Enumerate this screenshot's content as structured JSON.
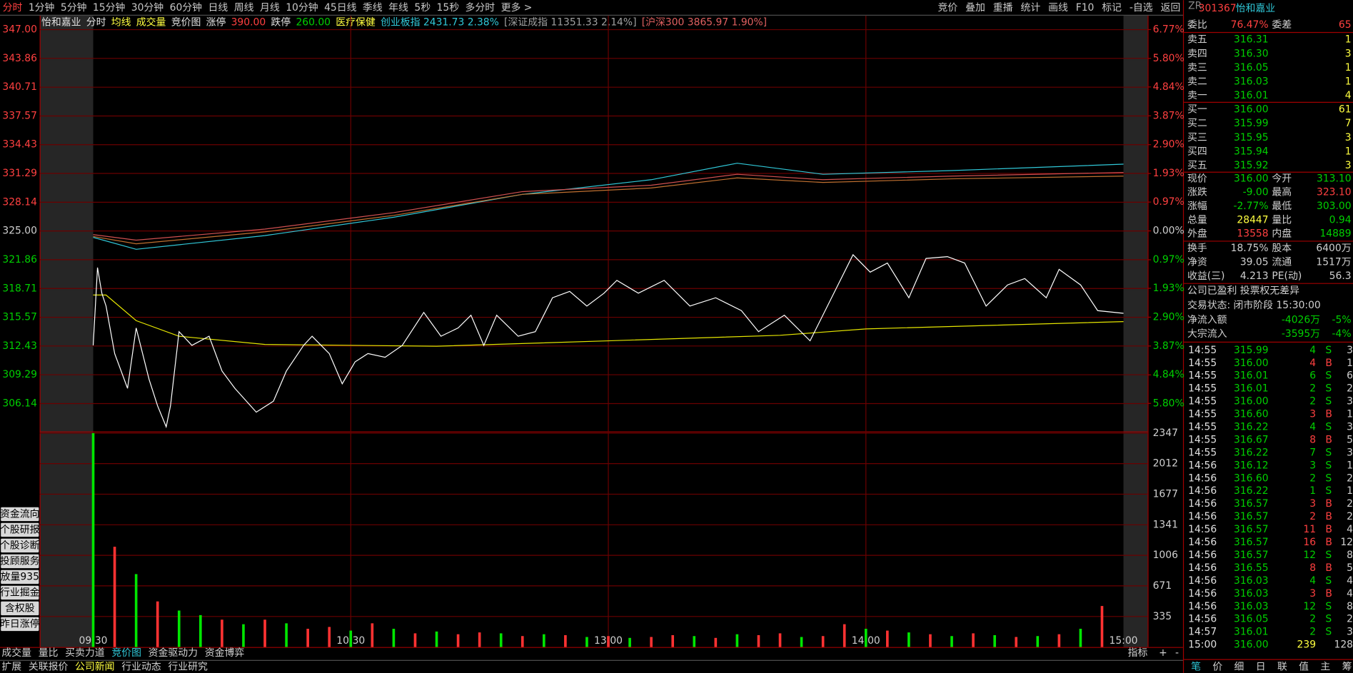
{
  "toolbar": {
    "left": [
      "分时",
      "1分钟",
      "5分钟",
      "15分钟",
      "30分钟",
      "60分钟",
      "日线",
      "周线",
      "月线",
      "10分钟",
      "45日线",
      "季线",
      "年线",
      "5秒",
      "15秒",
      "多分时",
      "更多 >"
    ],
    "right": [
      "竞价",
      "叠加",
      "重播",
      "统计",
      "画线",
      "F10",
      "标记",
      "-自选",
      "返回"
    ]
  },
  "info_bar": {
    "items": [
      "怡和嘉业",
      "分时",
      "均线",
      "成交量",
      "竞价图",
      "涨停",
      "390.00",
      "跌停",
      "260.00",
      "医疗保健",
      "创业板指 2431.73 2.38%",
      "[深证成指 11351.33 2.14%]",
      "[沪深300 3865.97 1.90%]"
    ],
    "colors": [
      "#e0e0e0",
      "#e0e0e0",
      "#ffff40",
      "#ffff40",
      "#e0e0e0",
      "#e0e0e0",
      "#ff4040",
      "#e0e0e0",
      "#00d000",
      "#ffff40",
      "#30c8d8",
      "#a0a0a0",
      "#e06060"
    ]
  },
  "chart_data": [
    {
      "type": "line",
      "xlim": [
        0,
        240
      ],
      "xticks": [
        {
          "value": 0,
          "label": "09:30"
        },
        {
          "value": 60,
          "label": "10:30"
        },
        {
          "value": 120,
          "label": "13:00"
        },
        {
          "value": 180,
          "label": "14:00"
        },
        {
          "value": 240,
          "label": "15:00"
        }
      ],
      "ylim": [
        303.1,
        347.4
      ],
      "yticks": [
        {
          "value": 347,
          "label": "347.00"
        },
        343.86,
        340.71,
        337.57,
        334.43,
        331.29,
        328.14,
        {
          "value": 325,
          "label": "325.00"
        },
        321.86,
        318.71,
        315.57,
        312.43,
        309.29,
        306.14
      ],
      "y2lim": [
        -6.74,
        6.89
      ],
      "y2ticks": [
        {
          "value": 6.77,
          "label": "6.77%"
        },
        {
          "value": 5.8,
          "label": "5.80%"
        },
        {
          "value": 4.84,
          "label": "4.84%"
        },
        {
          "value": 3.87,
          "label": "3.87%"
        },
        {
          "value": 2.9,
          "label": "2.90%"
        },
        {
          "value": 1.93,
          "label": "1.93%"
        },
        {
          "value": 0.97,
          "label": "0.97%"
        },
        {
          "value": 0,
          "label": "0.00%"
        },
        {
          "value": -0.97,
          "label": "0.97%"
        },
        {
          "value": -1.93,
          "label": "1.93%"
        },
        {
          "value": -2.9,
          "label": "2.90%"
        },
        {
          "value": -3.87,
          "label": "3.87%"
        },
        {
          "value": -4.84,
          "label": "4.84%"
        },
        {
          "value": -5.8,
          "label": "5.80%"
        }
      ],
      "grid": true,
      "series": [
        {
          "color": "#30c8d8",
          "x": [
            0,
            10,
            40,
            70,
            100,
            130,
            150,
            170,
            200,
            240
          ],
          "values": [
            324.3,
            323.0,
            324.5,
            326.5,
            329.0,
            330.6,
            332.4,
            331.2,
            331.6,
            332.3
          ]
        },
        {
          "color": "#d05050",
          "x": [
            0,
            10,
            40,
            70,
            100,
            130,
            150,
            170,
            200,
            240
          ],
          "values": [
            324.6,
            324.0,
            325.2,
            327.0,
            329.3,
            330.0,
            331.2,
            330.6,
            331.0,
            331.4
          ]
        },
        {
          "color": "#c07030",
          "x": [
            0,
            10,
            40,
            70,
            100,
            130,
            150,
            170,
            200,
            240
          ],
          "values": [
            324.4,
            323.6,
            324.9,
            326.7,
            329.0,
            329.7,
            330.8,
            330.3,
            330.7,
            331.0
          ]
        },
        {
          "color": "#e6e600",
          "x": [
            0,
            3,
            10,
            20,
            40,
            80,
            120,
            160,
            180,
            240
          ],
          "values": [
            318.0,
            318.0,
            315.2,
            313.5,
            312.6,
            312.4,
            313.0,
            313.6,
            314.3,
            315.1
          ]
        },
        {
          "color": "#ffffff",
          "x": [
            0,
            1,
            2,
            3,
            5,
            8,
            10,
            13,
            15,
            17,
            18,
            20,
            23,
            27,
            30,
            33,
            38,
            42,
            45,
            49,
            51,
            55,
            58,
            61,
            64,
            68,
            72,
            77,
            81,
            85,
            88,
            91,
            94,
            99,
            103,
            107,
            111,
            115,
            119,
            122,
            127,
            133,
            139,
            145,
            151,
            155,
            161,
            167,
            172,
            177,
            181,
            185,
            190,
            194,
            199,
            203,
            208,
            213,
            217,
            222,
            225,
            230,
            234,
            240
          ],
          "values": [
            312.5,
            321.0,
            318.2,
            316.8,
            311.6,
            307.8,
            314.4,
            308.8,
            305.9,
            303.6,
            305.9,
            314.0,
            312.5,
            313.5,
            309.7,
            307.8,
            305.2,
            306.4,
            309.7,
            312.5,
            313.5,
            311.6,
            308.3,
            310.7,
            311.6,
            311.2,
            312.5,
            316.1,
            313.5,
            314.4,
            315.8,
            312.5,
            315.8,
            313.5,
            314.0,
            317.7,
            318.4,
            316.8,
            318.2,
            319.6,
            318.2,
            319.6,
            316.8,
            317.7,
            316.3,
            314.0,
            315.8,
            313.0,
            317.7,
            322.4,
            320.5,
            321.5,
            317.7,
            322.0,
            322.2,
            321.5,
            316.8,
            319.1,
            319.8,
            317.7,
            320.8,
            319.1,
            316.3,
            316.0
          ]
        }
      ]
    },
    {
      "type": "bar",
      "xlim": [
        0,
        240
      ],
      "ylim": [
        0,
        2347
      ],
      "yticks": [
        335,
        671,
        1006,
        1341,
        1677,
        2012,
        2347
      ],
      "grid": true,
      "x": [
        0,
        5,
        10,
        15,
        20,
        25,
        30,
        35,
        40,
        45,
        50,
        55,
        60,
        65,
        70,
        75,
        80,
        85,
        90,
        95,
        100,
        105,
        110,
        115,
        120,
        125,
        130,
        135,
        140,
        145,
        150,
        155,
        160,
        165,
        170,
        175,
        180,
        185,
        190,
        195,
        200,
        205,
        210,
        215,
        220,
        225,
        230,
        235
      ],
      "values": [
        2347,
        1100,
        800,
        500,
        400,
        350,
        300,
        250,
        300,
        260,
        200,
        220,
        180,
        260,
        200,
        150,
        170,
        140,
        160,
        150,
        120,
        140,
        130,
        110,
        120,
        100,
        110,
        130,
        120,
        100,
        140,
        130,
        150,
        110,
        120,
        250,
        200,
        180,
        160,
        140,
        120,
        150,
        130,
        110,
        120,
        140,
        200,
        450
      ],
      "bar_colors": [
        "#00e600",
        "#ff3232",
        "#00e600",
        "#ff3232",
        "#00e600",
        "#00e600",
        "#ff3232",
        "#00e600",
        "#ff3232",
        "#00e600",
        "#ff3232",
        "#ff3232",
        "#00e600",
        "#ff3232",
        "#00e600",
        "#ff3232",
        "#00e600",
        "#ff3232",
        "#ff3232",
        "#00e600",
        "#ff3232",
        "#00e600",
        "#ff3232",
        "#00e600",
        "#ff3232",
        "#00e600",
        "#ff3232",
        "#ff3232",
        "#00e600",
        "#ff3232",
        "#00e600",
        "#ff3232",
        "#ff3232",
        "#00e600",
        "#ff3232",
        "#ff3232",
        "#00e600",
        "#ff3232",
        "#00e600",
        "#ff3232",
        "#00e600",
        "#ff3232",
        "#00e600",
        "#ff3232",
        "#00e600",
        "#ff3232",
        "#00e600",
        "#ff3232"
      ]
    }
  ],
  "left_buttons": [
    "资金流向",
    "个股研报",
    "个股诊断",
    "投顾服务",
    "放量935",
    "行业掘金",
    "含权股",
    "昨日涨停"
  ],
  "chart_tabs": {
    "items": [
      "成交量",
      "量比",
      "买卖力道",
      "竞价图",
      "资金驱动力",
      "资金博弈"
    ],
    "right": [
      "指标",
      "+",
      "-"
    ]
  },
  "bottom_links": [
    "扩展",
    "关联报价",
    "公司新闻",
    "行业动态",
    "行业研究"
  ],
  "stock": {
    "tag": "ZR",
    "code": "301367",
    "name": "怡和嘉业"
  },
  "order_book": {
    "ratio": [
      "委比",
      "76.47%",
      "委差",
      "65"
    ],
    "asks": [
      [
        "卖五",
        "316.31",
        "1"
      ],
      [
        "卖四",
        "316.30",
        "3"
      ],
      [
        "卖三",
        "316.05",
        "1"
      ],
      [
        "卖二",
        "316.03",
        "1"
      ],
      [
        "卖一",
        "316.01",
        "4"
      ]
    ],
    "bids": [
      [
        "买一",
        "316.00",
        "61"
      ],
      [
        "买二",
        "315.99",
        "7"
      ],
      [
        "买三",
        "315.95",
        "3"
      ],
      [
        "买四",
        "315.94",
        "1"
      ],
      [
        "买五",
        "315.92",
        "3"
      ]
    ]
  },
  "quote": {
    "rows": [
      [
        "现价",
        "316.00",
        "今开",
        "313.10"
      ],
      [
        "涨跌",
        "-9.00",
        "最高",
        "323.10"
      ],
      [
        "涨幅",
        "-2.77%",
        "最低",
        "303.00"
      ],
      [
        "总量",
        "28447",
        "量比",
        "0.94"
      ],
      [
        "外盘",
        "13558",
        "内盘",
        "14889"
      ],
      [
        "换手",
        "18.75%",
        "股本",
        "6400万"
      ],
      [
        "净资",
        "39.05",
        "流通",
        "1517万"
      ],
      [
        "收益(三)",
        "4.213",
        "PE(动)",
        "56.3"
      ]
    ],
    "colors": [
      [
        "#00d000",
        "#00d000"
      ],
      [
        "#00d000",
        "#ff4040"
      ],
      [
        "#00d000",
        "#00d000"
      ],
      [
        "#ffff40",
        "#00d000"
      ],
      [
        "#ff4040",
        "#00d000"
      ],
      [
        "#d0d0d0",
        "#d0d0d0"
      ],
      [
        "#d0d0d0",
        "#d0d0d0"
      ],
      [
        "#d0d0d0",
        "#d0d0d0"
      ]
    ]
  },
  "status": [
    "公司已盈利 投票权无差异",
    "交易状态: 闭市阶段 15:30:00"
  ],
  "flows": [
    [
      "净流入额",
      "-4026万",
      "-5%"
    ],
    [
      "大宗流入",
      "-3595万",
      "-4%"
    ]
  ],
  "trades": [
    [
      "14:55",
      "315.99",
      "4",
      "S",
      "3"
    ],
    [
      "14:55",
      "316.00",
      "4",
      "B",
      "1"
    ],
    [
      "14:55",
      "316.01",
      "6",
      "S",
      "6"
    ],
    [
      "14:55",
      "316.01",
      "2",
      "S",
      "2"
    ],
    [
      "14:55",
      "316.00",
      "2",
      "S",
      "3"
    ],
    [
      "14:55",
      "316.60",
      "3",
      "B",
      "1"
    ],
    [
      "14:55",
      "316.22",
      "4",
      "S",
      "3"
    ],
    [
      "14:55",
      "316.67",
      "8",
      "B",
      "5"
    ],
    [
      "14:55",
      "316.22",
      "7",
      "S",
      "3"
    ],
    [
      "14:56",
      "316.12",
      "3",
      "S",
      "1"
    ],
    [
      "14:56",
      "316.60",
      "2",
      "S",
      "2"
    ],
    [
      "14:56",
      "316.22",
      "1",
      "S",
      "1"
    ],
    [
      "14:56",
      "316.57",
      "3",
      "B",
      "2"
    ],
    [
      "14:56",
      "316.57",
      "2",
      "B",
      "2"
    ],
    [
      "14:56",
      "316.57",
      "11",
      "B",
      "4"
    ],
    [
      "14:56",
      "316.57",
      "16",
      "B",
      "12"
    ],
    [
      "14:56",
      "316.57",
      "12",
      "S",
      "8"
    ],
    [
      "14:56",
      "316.55",
      "8",
      "B",
      "5"
    ],
    [
      "14:56",
      "316.03",
      "4",
      "S",
      "4"
    ],
    [
      "14:56",
      "316.03",
      "3",
      "B",
      "4"
    ],
    [
      "14:56",
      "316.03",
      "12",
      "S",
      "8"
    ],
    [
      "14:56",
      "316.05",
      "2",
      "S",
      "2"
    ],
    [
      "14:57",
      "316.01",
      "2",
      "S",
      "3"
    ],
    [
      "15:00",
      "316.00",
      "239",
      "",
      "128"
    ]
  ],
  "panel_tabs": [
    "笔",
    "价",
    "细",
    "日",
    "联",
    "值",
    "主",
    "筹"
  ]
}
